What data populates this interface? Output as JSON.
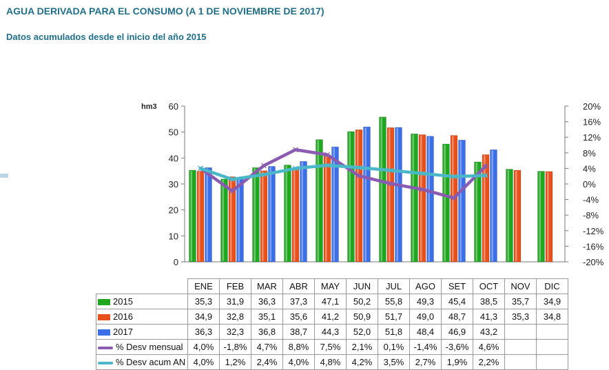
{
  "header": {
    "title": "AGUA DERIVADA PARA EL CONSUMO (A 1 DE NOVIEMBRE DE 2017)",
    "subtitle": "Datos acumulados desde el inicio del año 2015"
  },
  "chart_data": {
    "type": "bar",
    "categories": [
      "ENE",
      "FEB",
      "MAR",
      "ABR",
      "MAY",
      "JUN",
      "JUL",
      "AGO",
      "SET",
      "OCT",
      "NOV",
      "DIC"
    ],
    "y_unit": "hm3",
    "ylim": [
      0,
      60
    ],
    "y_ticks": [
      0,
      10,
      20,
      30,
      40,
      50,
      60
    ],
    "y2lim": [
      -20,
      20
    ],
    "y2_ticks": [
      "20%",
      "16%",
      "12%",
      "8%",
      "4%",
      "0%",
      "-4%",
      "-8%",
      "-12%",
      "-16%",
      "-20%"
    ],
    "grid": false,
    "legend": "table-below",
    "series": [
      {
        "name": "2015",
        "kind": "bar",
        "color": "#1fa81f",
        "values": [
          35.3,
          31.9,
          36.3,
          37.3,
          47.1,
          50.2,
          55.8,
          49.3,
          45.4,
          38.5,
          35.7,
          34.9
        ],
        "labels": [
          "35,3",
          "31,9",
          "36,3",
          "37,3",
          "47,1",
          "50,2",
          "55,8",
          "49,3",
          "45,4",
          "38,5",
          "35,7",
          "34,9"
        ]
      },
      {
        "name": "2016",
        "kind": "bar",
        "color": "#e8501c",
        "values": [
          34.9,
          32.8,
          35.1,
          35.6,
          41.2,
          50.9,
          51.7,
          49.0,
          48.7,
          41.3,
          35.3,
          34.8
        ],
        "labels": [
          "34,9",
          "32,8",
          "35,1",
          "35,6",
          "41,2",
          "50,9",
          "51,7",
          "49,0",
          "48,7",
          "41,3",
          "35,3",
          "34,8"
        ]
      },
      {
        "name": "2017",
        "kind": "bar",
        "color": "#3b6fe8",
        "values": [
          36.3,
          32.3,
          36.8,
          38.7,
          44.3,
          52.0,
          51.8,
          48.4,
          46.9,
          43.2,
          null,
          null
        ],
        "labels": [
          "36,3",
          "32,3",
          "36,8",
          "38,7",
          "44,3",
          "52,0",
          "51,8",
          "48,4",
          "46,9",
          "43,2",
          "",
          ""
        ]
      },
      {
        "name": "% Desv mensual",
        "kind": "line",
        "axis": "right",
        "color": "#8a5bb0",
        "values": [
          4.0,
          -1.8,
          4.7,
          8.8,
          7.5,
          2.1,
          0.1,
          -1.4,
          -3.6,
          4.6,
          null,
          null
        ],
        "labels": [
          "4,0%",
          "-1,8%",
          "4,7%",
          "8,8%",
          "7,5%",
          "2,1%",
          "0,1%",
          "-1,4%",
          "-3,6%",
          "4,6%",
          "",
          ""
        ]
      },
      {
        "name": "% Desv acum AN",
        "kind": "line",
        "axis": "right",
        "color": "#4bb8c9",
        "values": [
          4.0,
          1.2,
          2.4,
          4.0,
          4.8,
          4.2,
          3.5,
          2.7,
          1.9,
          2.2,
          null,
          null
        ],
        "labels": [
          "4,0%",
          "1,2%",
          "2,4%",
          "4,0%",
          "4,8%",
          "4,2%",
          "3,5%",
          "2,7%",
          "1,9%",
          "2,2%",
          "",
          ""
        ]
      }
    ]
  }
}
